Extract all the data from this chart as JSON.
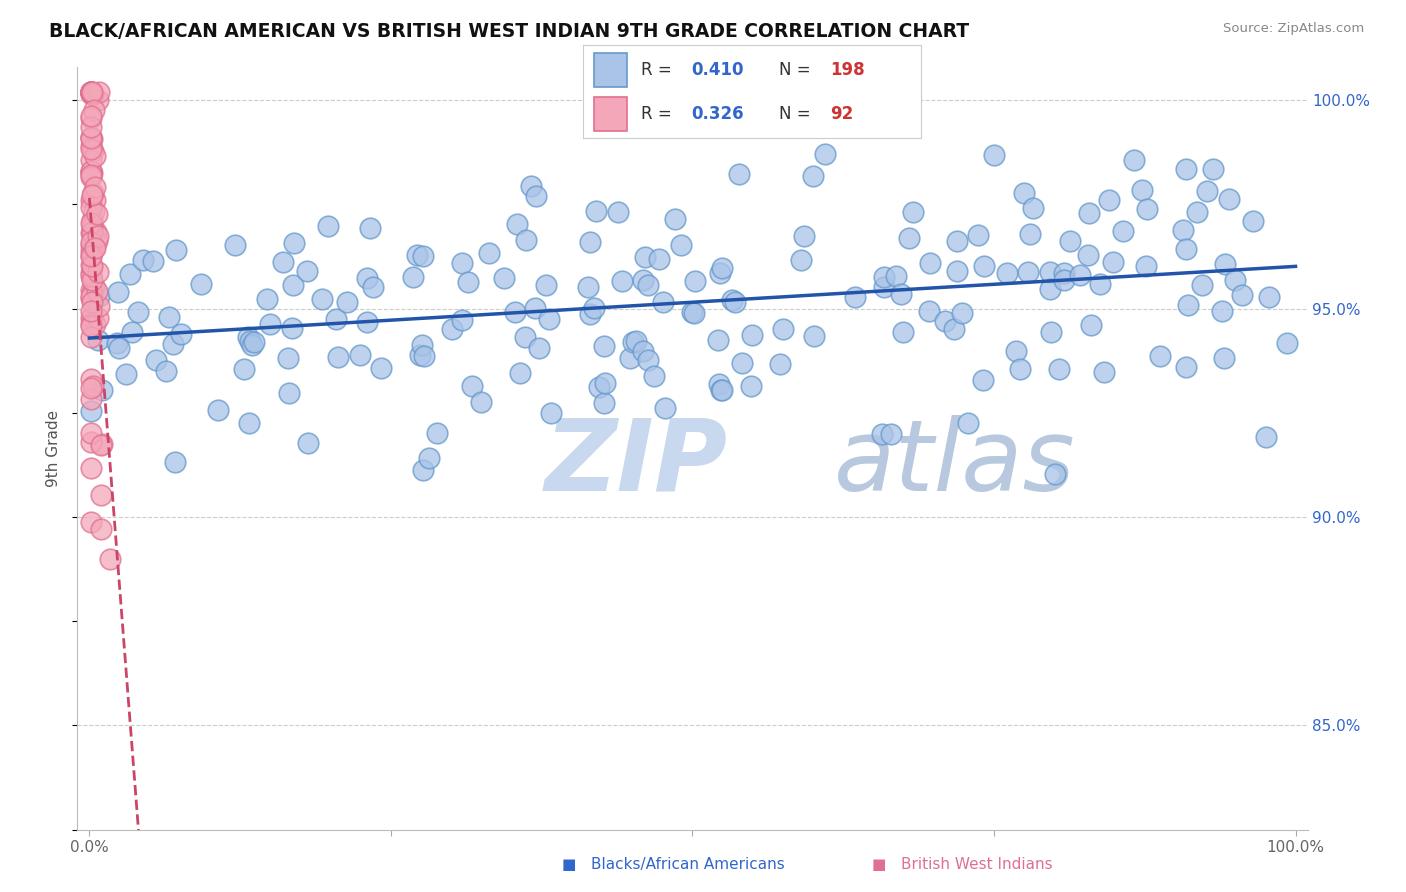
{
  "title": "BLACK/AFRICAN AMERICAN VS BRITISH WEST INDIAN 9TH GRADE CORRELATION CHART",
  "source_text": "Source: ZipAtlas.com",
  "ylabel": "9th Grade",
  "xlim": [
    -0.01,
    1.01
  ],
  "ylim": [
    0.825,
    1.008
  ],
  "yticks": [
    0.85,
    0.9,
    0.95,
    1.0
  ],
  "ytick_labels": [
    "85.0%",
    "90.0%",
    "95.0%",
    "100.0%"
  ],
  "blue_R": 0.41,
  "blue_N": 198,
  "pink_R": 0.326,
  "pink_N": 92,
  "blue_color": "#aac4e8",
  "blue_edge": "#6699cc",
  "pink_color": "#f4a7b9",
  "pink_edge": "#e07090",
  "blue_line_color": "#2255aa",
  "pink_line_color": "#cc4466",
  "legend_R_color": "#3366cc",
  "legend_N_color": "#cc3333",
  "background_color": "#ffffff",
  "grid_color": "#cccccc",
  "title_color": "#111111",
  "watermark_color": "#d0e0f0",
  "zip_color": "#c8d8ee",
  "atlas_color": "#b8c8de"
}
